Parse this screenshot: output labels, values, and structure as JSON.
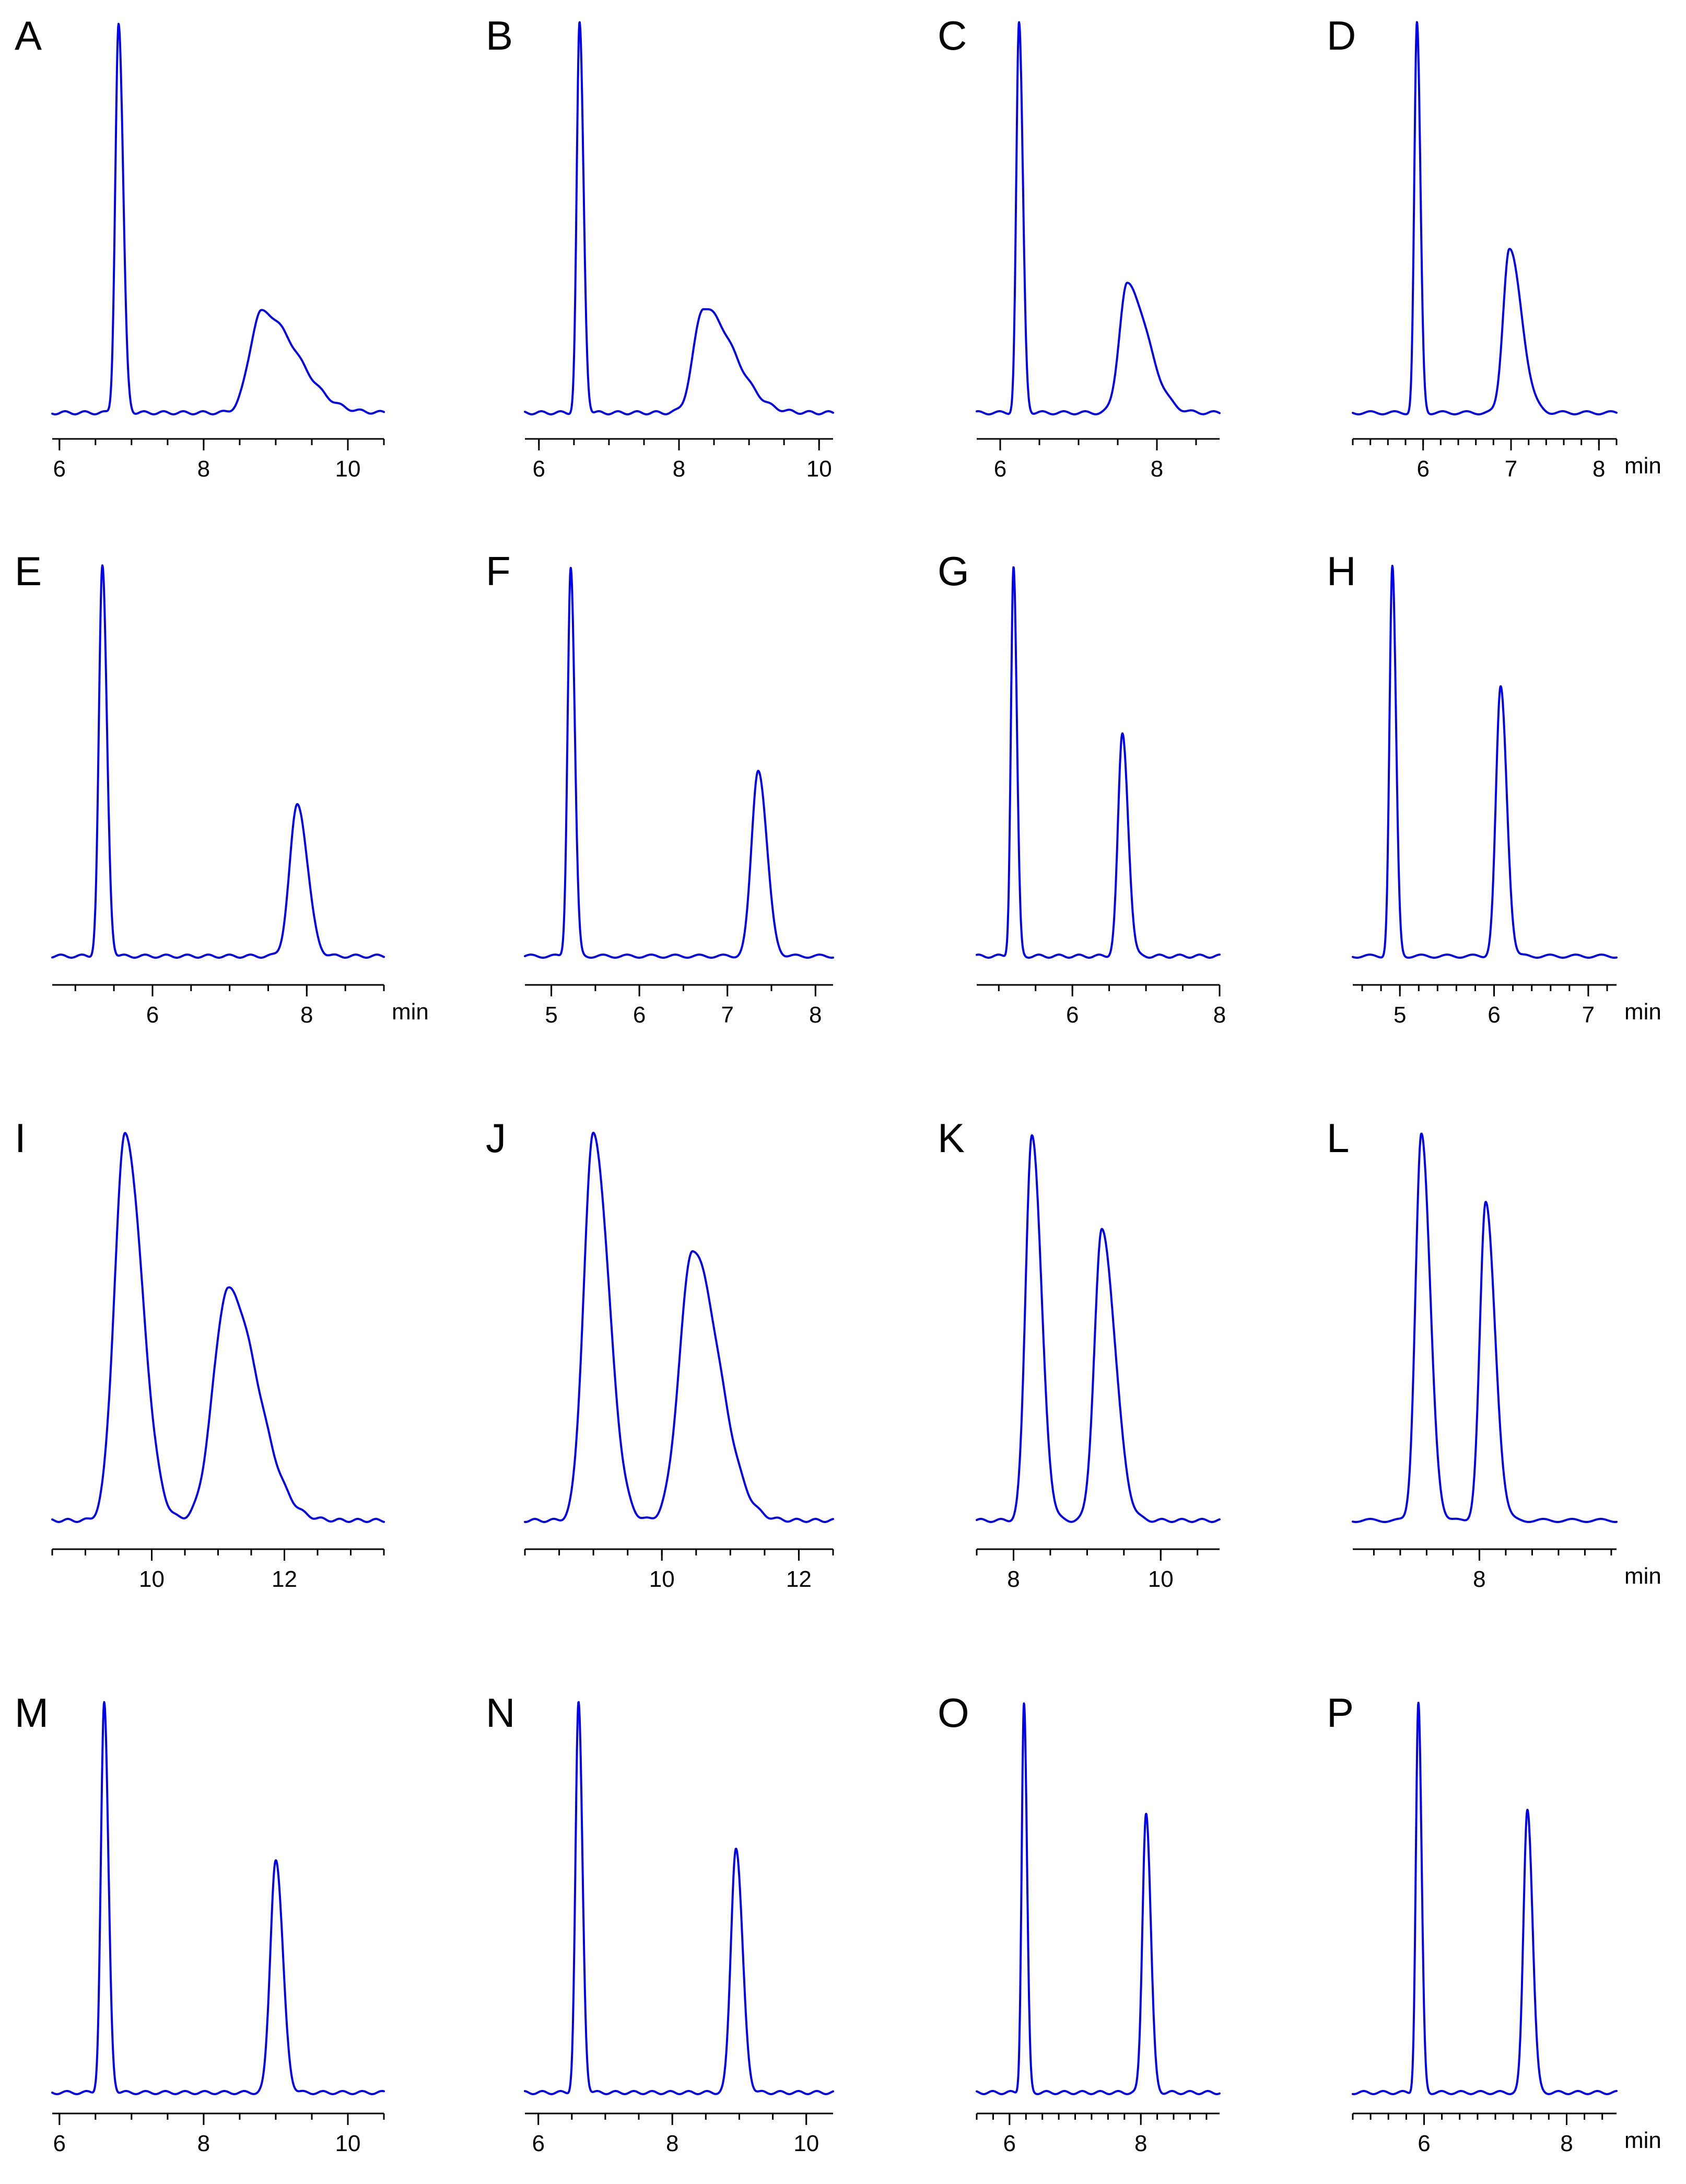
{
  "colors": {
    "trace": "#0000ee",
    "axis": "#000000",
    "background": "#ffffff"
  },
  "chart_data": [
    {
      "panel": "A",
      "type": "line",
      "xlabel": "",
      "xlim": [
        5.9,
        10.5
      ],
      "ticks": [
        6,
        8,
        10
      ],
      "tick_labels": [
        "6",
        "8",
        "10"
      ],
      "minor_step": 0.5,
      "peaks": [
        {
          "rt": 6.82,
          "height": 1.0,
          "width": 0.045,
          "tail": 1.4
        },
        {
          "rt": 8.8,
          "height": 0.26,
          "width": 0.16,
          "tail": 3.0
        }
      ]
    },
    {
      "panel": "B",
      "type": "line",
      "xlabel": "",
      "xlim": [
        5.8,
        10.2
      ],
      "ticks": [
        6,
        8,
        10
      ],
      "tick_labels": [
        "6",
        "8",
        "10"
      ],
      "minor_step": 0.5,
      "peaks": [
        {
          "rt": 6.58,
          "height": 1.0,
          "width": 0.04,
          "tail": 1.4
        },
        {
          "rt": 8.35,
          "height": 0.27,
          "width": 0.14,
          "tail": 3.0
        }
      ]
    },
    {
      "panel": "C",
      "type": "line",
      "xlabel": "",
      "xlim": [
        5.7,
        8.8
      ],
      "ticks": [
        6,
        8
      ],
      "tick_labels": [
        "6",
        "8"
      ],
      "minor_step": 0.5,
      "peaks": [
        {
          "rt": 6.24,
          "height": 1.0,
          "width": 0.035,
          "tail": 1.4
        },
        {
          "rt": 7.62,
          "height": 0.33,
          "width": 0.1,
          "tail": 2.6
        }
      ]
    },
    {
      "panel": "D",
      "type": "line",
      "xlabel": "min",
      "xlim": [
        5.2,
        8.2
      ],
      "ticks": [
        6,
        7,
        8
      ],
      "tick_labels": [
        "6",
        "7",
        "8"
      ],
      "minor_step": 0.2,
      "peaks": [
        {
          "rt": 5.93,
          "height": 1.0,
          "width": 0.03,
          "tail": 1.3
        },
        {
          "rt": 6.98,
          "height": 0.42,
          "width": 0.07,
          "tail": 2.0
        }
      ]
    },
    {
      "panel": "E",
      "type": "line",
      "xlabel": "min",
      "xlim": [
        4.7,
        9.0
      ],
      "ticks": [
        6,
        8
      ],
      "tick_labels": [
        "6",
        "8"
      ],
      "minor_step": 0.5,
      "peaks": [
        {
          "rt": 5.35,
          "height": 1.0,
          "width": 0.045,
          "tail": 1.3
        },
        {
          "rt": 7.88,
          "height": 0.39,
          "width": 0.1,
          "tail": 1.3
        }
      ]
    },
    {
      "panel": "F",
      "type": "line",
      "xlabel": "",
      "xlim": [
        4.7,
        8.2
      ],
      "ticks": [
        5,
        6,
        7,
        8
      ],
      "tick_labels": [
        "5",
        "6",
        "7",
        "8"
      ],
      "minor_step": 0.5,
      "peaks": [
        {
          "rt": 5.22,
          "height": 1.0,
          "width": 0.035,
          "tail": 1.3
        },
        {
          "rt": 7.35,
          "height": 0.48,
          "width": 0.075,
          "tail": 1.3
        }
      ]
    },
    {
      "panel": "G",
      "type": "line",
      "xlabel": "",
      "xlim": [
        4.7,
        8.0
      ],
      "ticks": [
        6,
        8
      ],
      "tick_labels": [
        "6",
        "8"
      ],
      "minor_step": 0.5,
      "peaks": [
        {
          "rt": 5.2,
          "height": 1.0,
          "width": 0.035,
          "tail": 1.3
        },
        {
          "rt": 6.68,
          "height": 0.57,
          "width": 0.06,
          "tail": 1.3
        }
      ]
    },
    {
      "panel": "H",
      "type": "line",
      "xlabel": "min",
      "xlim": [
        4.5,
        7.3
      ],
      "ticks": [
        5,
        6,
        7
      ],
      "tick_labels": [
        "5",
        "6",
        "7"
      ],
      "minor_step": 0.2,
      "peaks": [
        {
          "rt": 4.92,
          "height": 1.0,
          "width": 0.03,
          "tail": 1.3
        },
        {
          "rt": 6.07,
          "height": 0.69,
          "width": 0.05,
          "tail": 1.3
        }
      ]
    },
    {
      "panel": "I",
      "type": "line",
      "xlabel": "",
      "xlim": [
        8.5,
        13.5
      ],
      "ticks": [
        10,
        12
      ],
      "tick_labels": [
        "10",
        "12"
      ],
      "minor_step": 0.5,
      "peaks": [
        {
          "rt": 9.6,
          "height": 1.0,
          "width": 0.16,
          "tail": 1.6
        },
        {
          "rt": 11.15,
          "height": 0.6,
          "width": 0.22,
          "tail": 2.0
        }
      ]
    },
    {
      "panel": "J",
      "type": "line",
      "xlabel": "",
      "xlim": [
        8.0,
        12.5
      ],
      "ticks": [
        10,
        12
      ],
      "tick_labels": [
        "10",
        "12"
      ],
      "minor_step": 0.5,
      "peaks": [
        {
          "rt": 9.0,
          "height": 1.0,
          "width": 0.14,
          "tail": 1.6
        },
        {
          "rt": 10.45,
          "height": 0.7,
          "width": 0.19,
          "tail": 2.0
        }
      ]
    },
    {
      "panel": "K",
      "type": "line",
      "xlabel": "",
      "xlim": [
        7.5,
        10.8
      ],
      "ticks": [
        8,
        10
      ],
      "tick_labels": [
        "8",
        "10"
      ],
      "minor_step": 0.5,
      "peaks": [
        {
          "rt": 8.25,
          "height": 1.0,
          "width": 0.085,
          "tail": 1.5
        },
        {
          "rt": 9.2,
          "height": 0.75,
          "width": 0.1,
          "tail": 1.8
        }
      ]
    },
    {
      "panel": "L",
      "type": "line",
      "xlabel": "min",
      "xlim": [
        6.8,
        9.3
      ],
      "ticks": [
        8
      ],
      "tick_labels": [
        "8"
      ],
      "minor_step": 0.25,
      "peaks": [
        {
          "rt": 7.45,
          "height": 1.0,
          "width": 0.055,
          "tail": 1.5
        },
        {
          "rt": 8.06,
          "height": 0.82,
          "width": 0.055,
          "tail": 1.6
        }
      ]
    },
    {
      "panel": "M",
      "type": "line",
      "xlabel": "",
      "xlim": [
        5.9,
        10.5
      ],
      "ticks": [
        6,
        8,
        10
      ],
      "tick_labels": [
        "6",
        "8",
        "10"
      ],
      "minor_step": 0.5,
      "peaks": [
        {
          "rt": 6.62,
          "height": 1.0,
          "width": 0.045,
          "tail": 1.3
        },
        {
          "rt": 9.0,
          "height": 0.6,
          "width": 0.075,
          "tail": 1.3
        }
      ]
    },
    {
      "panel": "N",
      "type": "line",
      "xlabel": "",
      "xlim": [
        5.8,
        10.4
      ],
      "ticks": [
        6,
        8,
        10
      ],
      "tick_labels": [
        "6",
        "8",
        "10"
      ],
      "minor_step": 0.5,
      "peaks": [
        {
          "rt": 6.6,
          "height": 1.0,
          "width": 0.045,
          "tail": 1.3
        },
        {
          "rt": 8.95,
          "height": 0.63,
          "width": 0.075,
          "tail": 1.3
        }
      ]
    },
    {
      "panel": "O",
      "type": "line",
      "xlabel": "",
      "xlim": [
        5.5,
        9.2
      ],
      "ticks": [
        6,
        8
      ],
      "tick_labels": [
        "6",
        "8"
      ],
      "minor_step": 0.25,
      "peaks": [
        {
          "rt": 6.22,
          "height": 1.0,
          "width": 0.035,
          "tail": 1.3
        },
        {
          "rt": 8.08,
          "height": 0.72,
          "width": 0.055,
          "tail": 1.3
        }
      ]
    },
    {
      "panel": "P",
      "type": "line",
      "xlabel": "min",
      "xlim": [
        5.0,
        8.7
      ],
      "ticks": [
        6,
        8
      ],
      "tick_labels": [
        "6",
        "8"
      ],
      "minor_step": 0.25,
      "peaks": [
        {
          "rt": 5.92,
          "height": 1.0,
          "width": 0.035,
          "tail": 1.3
        },
        {
          "rt": 7.45,
          "height": 0.73,
          "width": 0.055,
          "tail": 1.3
        }
      ]
    }
  ]
}
